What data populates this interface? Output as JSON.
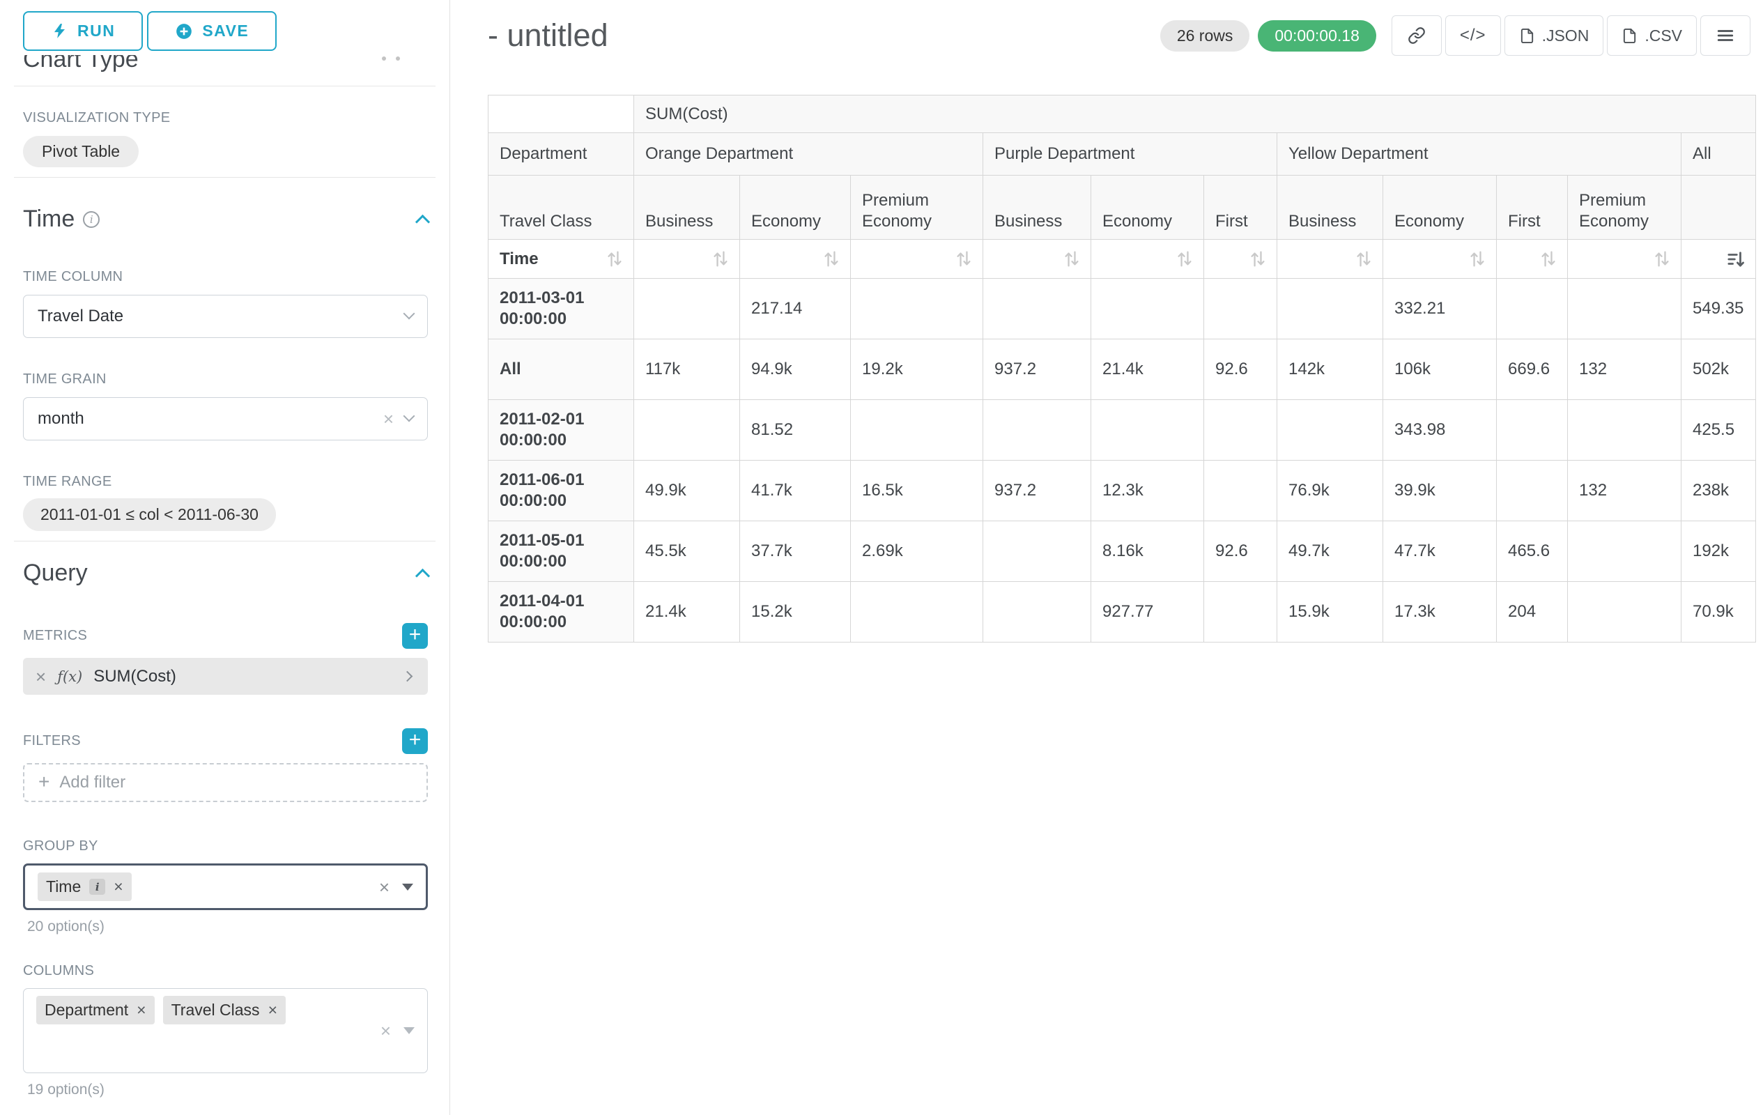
{
  "sidebar": {
    "run_button": "RUN",
    "save_button": "SAVE",
    "scrolled_heading": "Chart Type",
    "visualization": {
      "label": "VISUALIZATION TYPE",
      "value": "Pivot Table"
    },
    "time": {
      "title": "Time",
      "time_column": {
        "label": "TIME COLUMN",
        "value": "Travel Date"
      },
      "time_grain": {
        "label": "TIME GRAIN",
        "value": "month"
      },
      "time_range": {
        "label": "TIME RANGE",
        "value": "2011-01-01 ≤ col < 2011-06-30"
      }
    },
    "query": {
      "title": "Query",
      "metrics": {
        "label": "METRICS",
        "fx": "ƒ(x)",
        "value": "SUM(Cost)"
      },
      "filters": {
        "label": "FILTERS",
        "add_label": "Add filter"
      },
      "group_by": {
        "label": "GROUP BY",
        "chips": [
          {
            "label": "Time"
          }
        ],
        "hint": "20 option(s)"
      },
      "columns": {
        "label": "COLUMNS",
        "chips": [
          {
            "label": "Department"
          },
          {
            "label": "Travel Class"
          }
        ],
        "hint": "19 option(s)"
      }
    }
  },
  "header": {
    "title": "- untitled",
    "row_count_badge": "26 rows",
    "timer_badge": "00:00:00.18",
    "code_button": "</>",
    "json_button": ".JSON",
    "csv_button": ".CSV"
  },
  "pivot": {
    "metric_header": "SUM(Cost)",
    "corner_label": "Department",
    "row_dim_label": "Travel Class",
    "time_label": "Time",
    "col_groups": [
      {
        "label": "Orange Department",
        "cols": [
          "Business",
          "Economy",
          "Premium Economy"
        ]
      },
      {
        "label": "Purple Department",
        "cols": [
          "Business",
          "Economy",
          "First"
        ]
      },
      {
        "label": "Yellow Department",
        "cols": [
          "Business",
          "Economy",
          "First",
          "Premium Economy"
        ]
      },
      {
        "label": "All",
        "cols": [
          ""
        ]
      }
    ],
    "rows": [
      {
        "label": "2011-03-01 00:00:00",
        "values": [
          "",
          "217.14",
          "",
          "",
          "",
          "",
          "",
          "332.21",
          "",
          "",
          "549.35"
        ]
      },
      {
        "label": "All",
        "values": [
          "117k",
          "94.9k",
          "19.2k",
          "937.2",
          "21.4k",
          "92.6",
          "142k",
          "106k",
          "669.6",
          "132",
          "502k"
        ]
      },
      {
        "label": "2011-02-01 00:00:00",
        "values": [
          "",
          "81.52",
          "",
          "",
          "",
          "",
          "",
          "343.98",
          "",
          "",
          "425.5"
        ]
      },
      {
        "label": "2011-06-01 00:00:00",
        "values": [
          "49.9k",
          "41.7k",
          "16.5k",
          "937.2",
          "12.3k",
          "",
          "76.9k",
          "39.9k",
          "",
          "132",
          "238k"
        ]
      },
      {
        "label": "2011-05-01 00:00:00",
        "values": [
          "45.5k",
          "37.7k",
          "2.69k",
          "",
          "8.16k",
          "92.6",
          "49.7k",
          "47.7k",
          "465.6",
          "",
          "192k"
        ]
      },
      {
        "label": "2011-04-01 00:00:00",
        "values": [
          "21.4k",
          "15.2k",
          "",
          "",
          "927.77",
          "",
          "15.9k",
          "17.3k",
          "204",
          "",
          "70.9k"
        ]
      }
    ]
  }
}
